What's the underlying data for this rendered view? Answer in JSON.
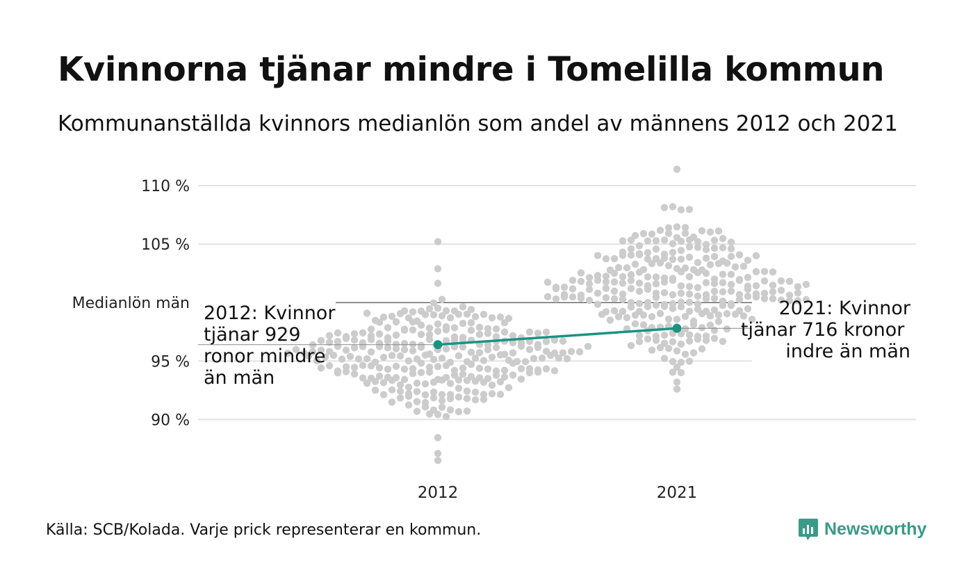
{
  "header": {
    "title": "Kvinnorna tjänar mindre i Tomelilla kommun",
    "subtitle": "Kommunanställda kvinnors medianlön som andel av männens 2012 och 2021"
  },
  "footer": {
    "source": "Källa: SCB/Kolada. Varje prick representerar en kommun.",
    "brand": "Newsworthy"
  },
  "colors": {
    "dots": "#cccccc",
    "highlight": "#1a9382",
    "grid": "#e3e3e3",
    "reference": "#222222"
  },
  "chart_data": {
    "type": "scatter",
    "title": "Kvinnorna tjänar mindre i Tomelilla kommun",
    "subtitle": "Kommunanställda kvinnors medianlön som andel av männens 2012 och 2021",
    "categories": [
      "2012",
      "2021"
    ],
    "ylim": [
      85,
      112
    ],
    "y_ticks": [
      {
        "value": 110,
        "label": "110 %"
      },
      {
        "value": 105,
        "label": "105 %"
      },
      {
        "value": 95,
        "label": "95 %"
      },
      {
        "value": 90,
        "label": "90 %"
      }
    ],
    "reference": {
      "value": 100,
      "label": "Medianlön män"
    },
    "distribution": {
      "2012": {
        "mean": 95.4,
        "sd": 2.7,
        "min": 86.5,
        "max": 105.2,
        "count": 290
      },
      "2021": {
        "mean": 101.2,
        "sd": 2.9,
        "min": 92.6,
        "max": 111.4,
        "count": 290
      }
    },
    "highlight": {
      "name": "Tomelilla",
      "values": [
        96.4,
        97.8
      ],
      "annotations": [
        "2012: Kvinnor tjänar 929 kronor mindre än män",
        "2021: Kvinnor tjänar 716 kronor mindre än män"
      ]
    },
    "grid": true
  }
}
